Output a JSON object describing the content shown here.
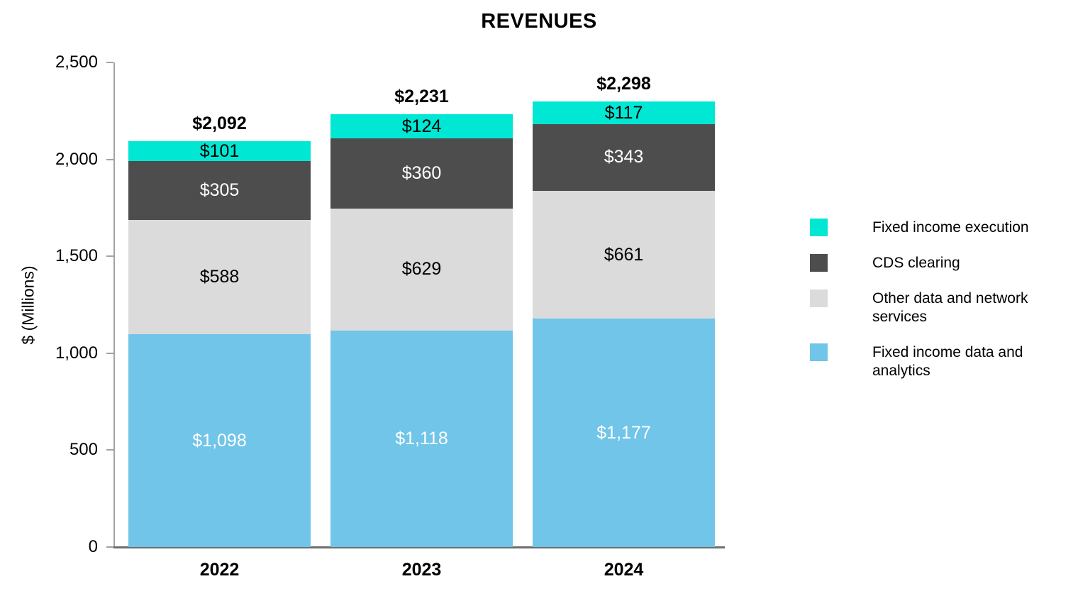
{
  "chart_data": {
    "type": "bar",
    "stacked": true,
    "title": "REVENUES",
    "ylabel": "$ (Millions)",
    "categories": [
      "2022",
      "2023",
      "2024"
    ],
    "series": [
      {
        "name": "Fixed income data and analytics",
        "color": "#70C5E8",
        "label_color": "#FFFFFF",
        "values": [
          1098,
          1118,
          1177
        ],
        "labels": [
          "$1,098",
          "$1,118",
          "$1,177"
        ]
      },
      {
        "name": "Other data and network services",
        "color": "#DBDBDB",
        "label_color": "#000000",
        "values": [
          588,
          629,
          661
        ],
        "labels": [
          "$588",
          "$629",
          "$661"
        ]
      },
      {
        "name": "CDS clearing",
        "color": "#4D4D4D",
        "label_color": "#FFFFFF",
        "values": [
          305,
          360,
          343
        ],
        "labels": [
          "$305",
          "$360",
          "$343"
        ]
      },
      {
        "name": "Fixed income execution",
        "color": "#00E7D3",
        "label_color": "#000000",
        "values": [
          101,
          124,
          117
        ],
        "labels": [
          "$101",
          "$124",
          "$117"
        ]
      }
    ],
    "totals": {
      "values": [
        2092,
        2231,
        2298
      ],
      "labels": [
        "$2,092",
        "$2,231",
        "$2,298"
      ]
    },
    "ylim": [
      0,
      2500
    ],
    "yticks": {
      "values": [
        0,
        500,
        1000,
        1500,
        2000,
        2500
      ],
      "labels": [
        "0",
        "500",
        "1,000",
        "1,500",
        "2,000",
        "2,500"
      ]
    },
    "grid": false,
    "legend_position": "right",
    "legend": [
      {
        "label": "Fixed income execution",
        "color": "#00E7D3"
      },
      {
        "label": "CDS clearing",
        "color": "#4D4D4D"
      },
      {
        "label": "Other data and network services",
        "color": "#DBDBDB"
      },
      {
        "label": "Fixed income data and analytics",
        "color": "#70C5E8"
      }
    ]
  }
}
